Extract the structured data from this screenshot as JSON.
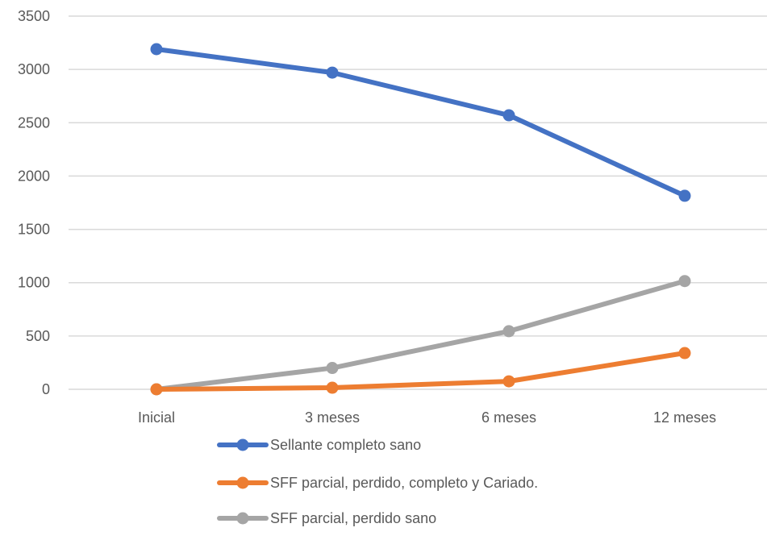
{
  "chart_data": {
    "type": "line",
    "title": "",
    "xlabel": "",
    "ylabel": "",
    "categories": [
      "Inicial",
      "3 meses",
      "6 meses",
      "12 meses"
    ],
    "ylim": [
      0,
      3500
    ],
    "yticks": [
      "0",
      "500",
      "1000",
      "1500",
      "2000",
      "2500",
      "3000",
      "3500"
    ],
    "grid": "horizontal",
    "legend_position": "bottom",
    "series": [
      {
        "name": "Sellante completo sano",
        "color": "#4472C4",
        "values": [
          3190,
          2970,
          2570,
          1815
        ]
      },
      {
        "name": "SFF parcial, perdido, completo y Cariado.",
        "color": "#ED7D31",
        "values": [
          0,
          15,
          75,
          340
        ]
      },
      {
        "name": "SFF parcial, perdido sano",
        "color": "#A5A5A5",
        "values": [
          0,
          200,
          545,
          1015
        ]
      }
    ]
  }
}
